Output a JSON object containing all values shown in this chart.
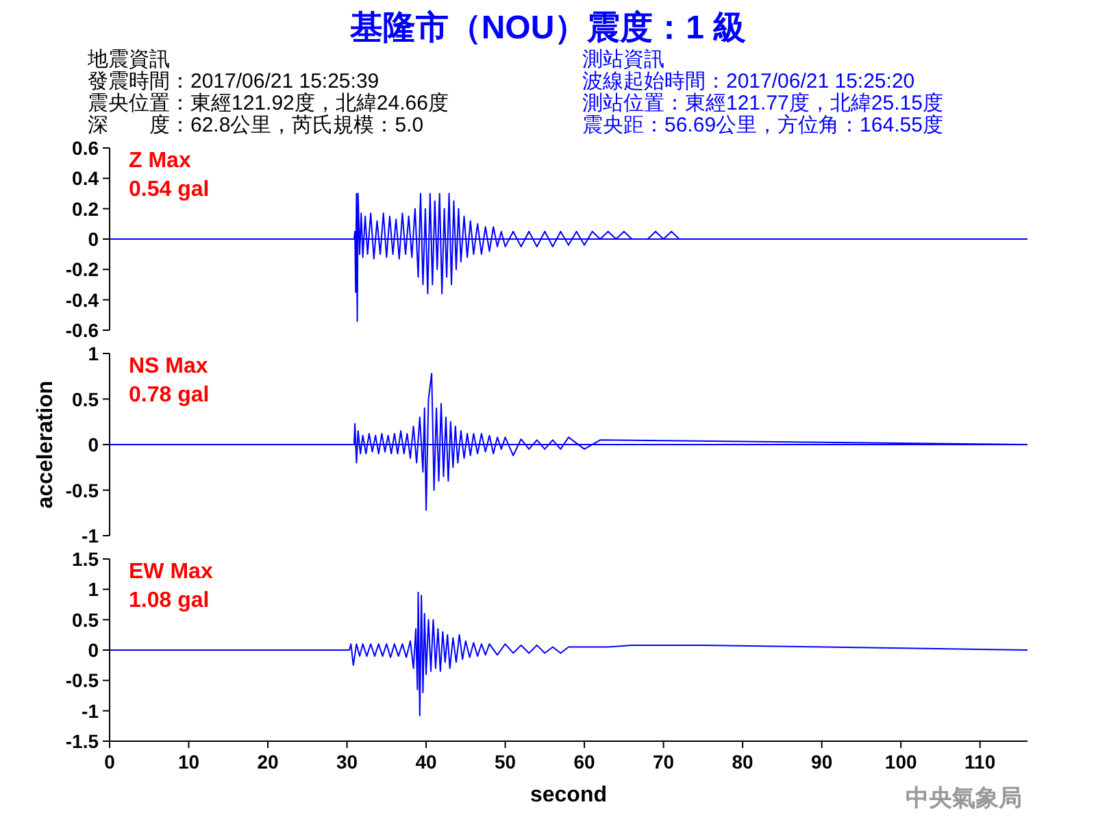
{
  "chart_data": [
    {
      "type": "line",
      "title": "基隆市（NOU）震度：1 級",
      "tick_labels": "y",
      "xlim": [
        0,
        116
      ],
      "ref_lines": [
        {
          "axis": "y",
          "value": 0,
          "color": "#0000ff"
        }
      ],
      "ylim": [
        -0.6,
        0.6
      ],
      "yticks": [
        -0.6,
        -0.4,
        -0.2,
        0,
        0.2,
        0.4,
        0.6
      ],
      "annotations": [
        "地震資訊",
        "發震時間：2017/06/21 15:25:39",
        "震央位置：東經121.92度，北緯24.66度",
        "深　　度：62.8公里，芮氏規模：5.0",
        "測站資訊",
        "波線起始時間：2017/06/21 15:25:20",
        "測站位置：東經121.77度，北緯25.15度",
        "震央距：56.69公里，方位角：164.55度",
        "Z Max",
        "0.54 gal"
      ],
      "series": [
        {
          "color": "#0000ff",
          "x": [
            0,
            30.9,
            31.0,
            31.1,
            31.2,
            31.3,
            31.4,
            31.6,
            31.8,
            32.0,
            32.3,
            32.6,
            33.0,
            33.4,
            33.8,
            34.2,
            34.6,
            35.0,
            35.4,
            35.8,
            36.2,
            36.6,
            37.0,
            37.4,
            37.8,
            38.2,
            38.6,
            39.0,
            39.3,
            39.6,
            39.9,
            40.2,
            40.5,
            40.8,
            41.1,
            41.4,
            41.7,
            42.0,
            42.3,
            42.6,
            42.9,
            43.2,
            43.5,
            43.8,
            44.1,
            44.4,
            44.8,
            45.2,
            45.6,
            46.0,
            46.5,
            47.0,
            47.5,
            48.0,
            48.5,
            49.0,
            49.5,
            50.0,
            51,
            52,
            53,
            54,
            55,
            56,
            57,
            58,
            59,
            60,
            61,
            62,
            63,
            64,
            65,
            66,
            67,
            68,
            69,
            70,
            71,
            72,
            116
          ],
          "values": [
            0,
            0,
            0.05,
            -0.35,
            0.3,
            -0.54,
            0.3,
            -0.1,
            0.17,
            -0.12,
            0.15,
            -0.1,
            0.17,
            -0.13,
            0.12,
            -0.1,
            0.17,
            -0.12,
            0.15,
            -0.1,
            0.13,
            -0.13,
            0.17,
            -0.1,
            0.15,
            -0.12,
            0.2,
            -0.25,
            0.3,
            -0.3,
            0.2,
            -0.36,
            0.3,
            -0.3,
            0.25,
            -0.2,
            0.3,
            -0.36,
            0.2,
            -0.25,
            0.3,
            -0.3,
            0.25,
            -0.2,
            0.2,
            -0.15,
            0.15,
            -0.12,
            0.12,
            -0.1,
            0.1,
            -0.1,
            0.08,
            -0.08,
            0.08,
            -0.05,
            0.05,
            -0.05,
            0.05,
            -0.05,
            0.05,
            -0.05,
            0.05,
            -0.05,
            0.05,
            -0.04,
            0.05,
            -0.04,
            0.05,
            0,
            0.05,
            0,
            0.05,
            0,
            0,
            0,
            0.05,
            0,
            0.05,
            0,
            0
          ]
        }
      ]
    },
    {
      "type": "line",
      "ylabel": "acceleration",
      "tick_labels": "y",
      "xlim": [
        0,
        116
      ],
      "ref_lines": [
        {
          "axis": "y",
          "value": 0,
          "color": "#0000ff"
        }
      ],
      "ylim": [
        -1,
        1
      ],
      "yticks": [
        -1,
        -0.5,
        0,
        0.5,
        1
      ],
      "annotations": [
        "NS Max",
        "0.78 gal"
      ],
      "series": [
        {
          "color": "#0000ff",
          "x": [
            0,
            30.9,
            31.0,
            31.2,
            31.4,
            31.7,
            32.0,
            32.4,
            32.8,
            33.2,
            33.6,
            34.0,
            34.4,
            34.8,
            35.2,
            35.6,
            36.0,
            36.4,
            36.8,
            37.2,
            37.6,
            38.0,
            38.4,
            38.8,
            39.2,
            39.6,
            39.8,
            40.0,
            40.3,
            40.7,
            41.0,
            41.3,
            41.6,
            41.9,
            42.2,
            42.5,
            42.8,
            43.1,
            43.4,
            43.7,
            44.0,
            44.4,
            44.8,
            45.2,
            45.6,
            46.0,
            46.5,
            47.0,
            47.5,
            48.0,
            48.5,
            49.0,
            49.5,
            50.0,
            51,
            52,
            53,
            54,
            55,
            56,
            57,
            58,
            60,
            62,
            116
          ],
          "values": [
            0,
            0,
            0.23,
            -0.2,
            0.15,
            -0.1,
            0.1,
            -0.1,
            0.12,
            -0.08,
            0.1,
            -0.1,
            0.12,
            -0.08,
            0.1,
            -0.1,
            0.12,
            -0.1,
            0.15,
            -0.1,
            0.12,
            -0.15,
            0.2,
            -0.2,
            0.3,
            -0.3,
            0.4,
            -0.72,
            0.5,
            0.78,
            -0.5,
            0.4,
            -0.4,
            0.45,
            -0.35,
            0.3,
            -0.4,
            0.25,
            -0.25,
            0.2,
            -0.2,
            0.15,
            -0.15,
            0.12,
            -0.12,
            0.12,
            -0.1,
            0.12,
            -0.08,
            0.1,
            -0.1,
            0.08,
            -0.05,
            0.08,
            -0.12,
            0.06,
            -0.05,
            0.05,
            -0.05,
            0.05,
            -0.05,
            0.08,
            -0.05,
            0.05,
            0
          ]
        }
      ]
    },
    {
      "type": "line",
      "xlabel": "second",
      "xlim": [
        0,
        116
      ],
      "xticks": [
        0,
        10,
        20,
        30,
        40,
        50,
        60,
        70,
        80,
        90,
        100,
        110
      ],
      "ylim": [
        -1.5,
        1.5
      ],
      "yticks": [
        -1.5,
        -1,
        -0.5,
        0,
        0.5,
        1,
        1.5
      ],
      "annotations": [
        "EW Max",
        "1.08 gal",
        "中央氣象局"
      ],
      "series": [
        {
          "color": "#0000ff",
          "x": [
            0,
            30.3,
            30.5,
            30.8,
            31.2,
            31.6,
            32.0,
            32.5,
            33.0,
            33.5,
            34.0,
            34.5,
            35.0,
            35.5,
            36.0,
            36.5,
            37.0,
            37.5,
            38.0,
            38.4,
            38.7,
            38.9,
            39.0,
            39.2,
            39.4,
            39.6,
            39.8,
            40.0,
            40.3,
            40.6,
            40.9,
            41.2,
            41.5,
            41.8,
            42.1,
            42.4,
            42.7,
            43.0,
            43.4,
            43.8,
            44.2,
            44.6,
            45.0,
            45.5,
            46.0,
            46.5,
            47.0,
            47.5,
            48.0,
            49,
            50,
            51,
            52,
            53,
            54,
            55,
            56,
            57,
            58,
            60,
            63,
            66,
            75,
            116
          ],
          "values": [
            0,
            0,
            0.1,
            -0.25,
            0.1,
            -0.1,
            0.1,
            -0.1,
            0.1,
            -0.1,
            0.1,
            -0.1,
            0.1,
            -0.12,
            0.1,
            -0.1,
            0.1,
            -0.12,
            0.15,
            -0.3,
            0.35,
            -0.65,
            0.95,
            -1.08,
            0.9,
            -0.7,
            0.6,
            -0.4,
            0.5,
            -0.35,
            0.5,
            -0.3,
            0.35,
            -0.35,
            0.3,
            -0.2,
            0.25,
            -0.3,
            0.2,
            -0.2,
            0.25,
            -0.15,
            0.15,
            -0.12,
            0.12,
            -0.1,
            0.1,
            -0.08,
            0.1,
            -0.08,
            0.1,
            -0.05,
            0.08,
            -0.05,
            0.08,
            -0.05,
            0.05,
            -0.05,
            0.05,
            0.05,
            0.05,
            0.08,
            0.08,
            0
          ]
        }
      ]
    }
  ]
}
